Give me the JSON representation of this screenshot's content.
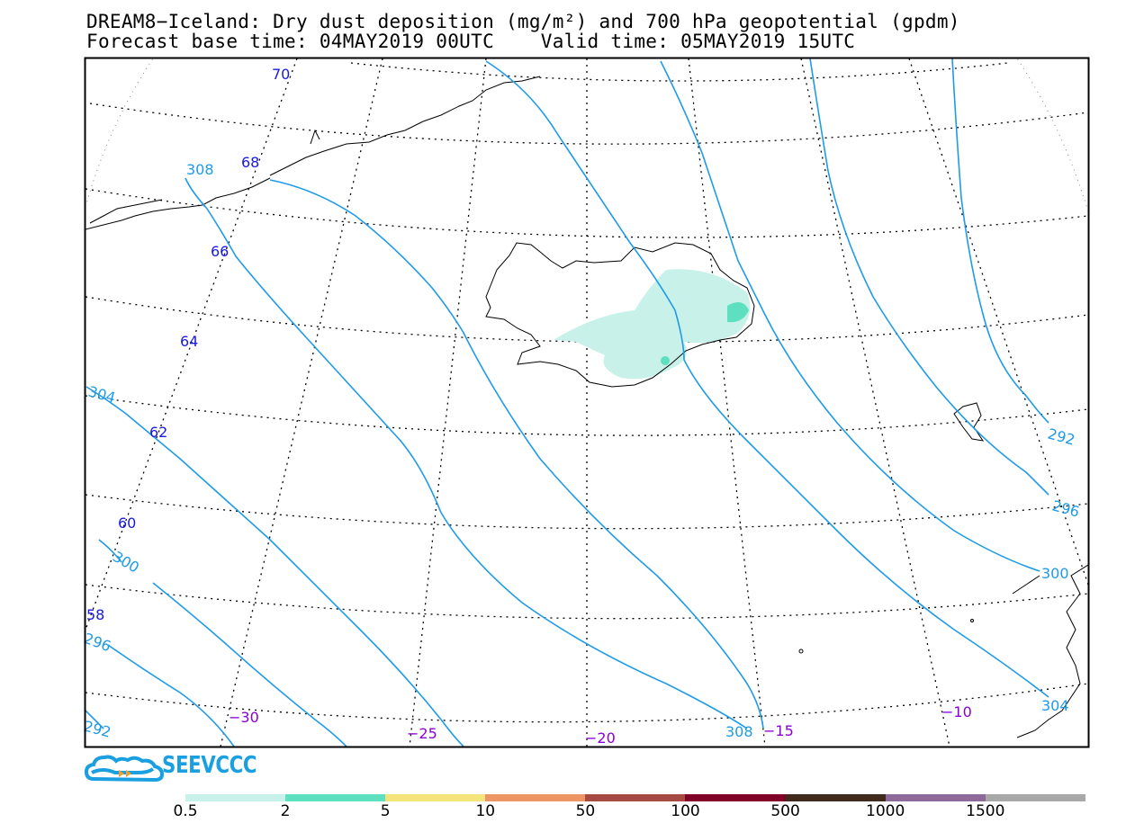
{
  "title": {
    "line1": "DREAM8−Iceland: Dry dust deposition (mg/m²) and 700 hPa geopotential (gpdm)",
    "line2": "Forecast base time: 04MAY2019 00UTC    Valid time: 05MAY2019 15UTC"
  },
  "logo": {
    "text": "SEEVCCC",
    "icon": "cloud-logo-icon",
    "color": "#1a9fe0"
  },
  "colors": {
    "contour": "#1e9be8",
    "latitude_label": "#1a1ae0",
    "longitude_label": "#8a00d4",
    "coast": "#000000",
    "frame": "#000000"
  },
  "latitude_labels": [
    "70",
    "68",
    "66",
    "64",
    "62",
    "60",
    "58"
  ],
  "longitude_labels": [
    "−30",
    "−25",
    "−20",
    "−15",
    "−10"
  ],
  "contour_labels": [
    "308",
    "304",
    "300",
    "296",
    "292",
    "292",
    "296",
    "300",
    "304",
    "308"
  ],
  "dust_colors": {
    "level1": "#c8f1ea",
    "level2": "#5ddfc0"
  },
  "colorbar": {
    "colors": [
      "#c8f1ea",
      "#5ddfc0",
      "#f5e47c",
      "#ee9566",
      "#a84a44",
      "#800028",
      "#3f2a1c",
      "#8e6a9a",
      "#a8a8a8"
    ],
    "labels": [
      "0.5",
      "2",
      "5",
      "10",
      "50",
      "100",
      "500",
      "1000",
      "1500"
    ]
  }
}
